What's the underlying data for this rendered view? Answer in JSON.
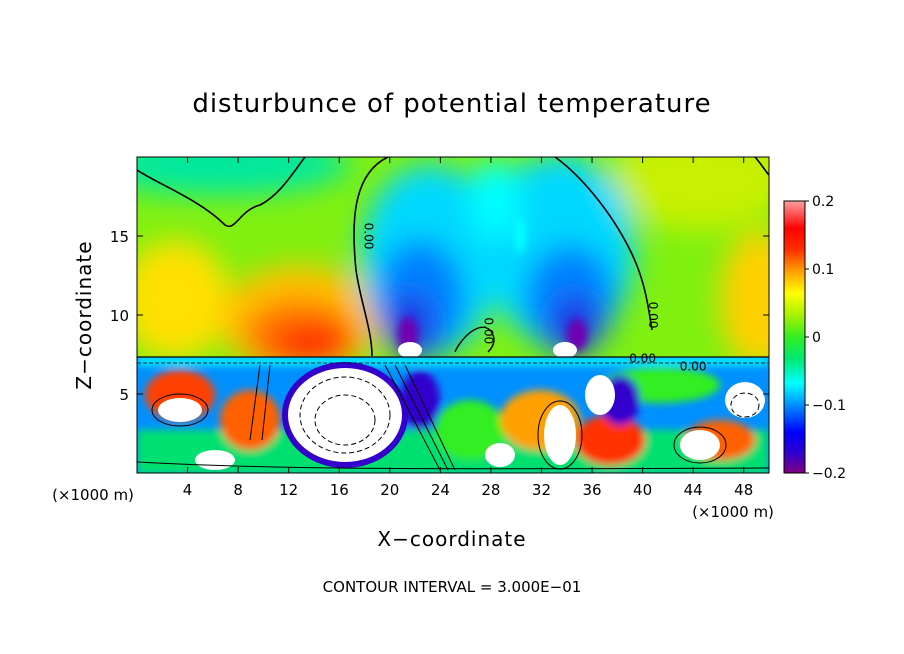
{
  "chart_data": {
    "type": "heatmap",
    "title": "disturbunce of potential temperature",
    "xlabel": "X−coordinate",
    "ylabel": "Z−coordinate",
    "x_unit": "(×1000 m)",
    "footer": "CONTOUR INTERVAL = 3.000E−01",
    "xlim": [
      0,
      50
    ],
    "ylim": [
      0,
      20
    ],
    "x_ticks": [
      4,
      8,
      12,
      16,
      20,
      24,
      28,
      32,
      36,
      40,
      44,
      48
    ],
    "x_tick_labels": [
      "4",
      "8",
      "12",
      "16",
      "20",
      "24",
      "28",
      "32",
      "36",
      "40",
      "44",
      "48"
    ],
    "y_ticks": [
      5,
      10,
      15
    ],
    "y_tick_labels": [
      "5",
      "10",
      "15"
    ],
    "colorbar": {
      "min": -0.2,
      "max": 0.2,
      "ticks": [
        0.2,
        0.1,
        0,
        -0.1,
        -0.2
      ],
      "tick_labels": [
        "0.2",
        "0.1",
        "0",
        "−0.1",
        "−0.2"
      ],
      "colors": [
        "#800080",
        "#9b00c8",
        "#3300cc",
        "#0000ff",
        "#0050ff",
        "#0090ff",
        "#00c8ff",
        "#00ffff",
        "#00e8b0",
        "#00e070",
        "#33ee22",
        "#88f000",
        "#c8f000",
        "#ffff00",
        "#ffd000",
        "#ffa000",
        "#ff7000",
        "#ff3000",
        "#ff0000",
        "#ff6060",
        "#ffa0a0"
      ]
    },
    "contour_labels": [
      {
        "text": "0.00",
        "x": 18.0,
        "z": 15.0
      },
      {
        "text": "0.00",
        "x": 27.5,
        "z": 9.0
      },
      {
        "text": "0.00",
        "x": 40.5,
        "z": 10.0
      },
      {
        "text": "0.00",
        "x": 40.0,
        "z": 7.0
      },
      {
        "text": "0.00",
        "x": 44.0,
        "z": 6.5
      }
    ],
    "features": [
      {
        "kind": "warm-anomaly",
        "x": 14.0,
        "z": 9.5,
        "peak": 0.12
      },
      {
        "kind": "cold-anomaly",
        "x": 22.0,
        "z": 10.5,
        "peak": -0.2
      },
      {
        "kind": "cold-anomaly",
        "x": 34.0,
        "z": 10.5,
        "peak": -0.2
      },
      {
        "kind": "zero-contour",
        "description": "separates warm/cool regions aloft"
      }
    ],
    "layer_boundary_z": 7.3,
    "grid": false
  }
}
